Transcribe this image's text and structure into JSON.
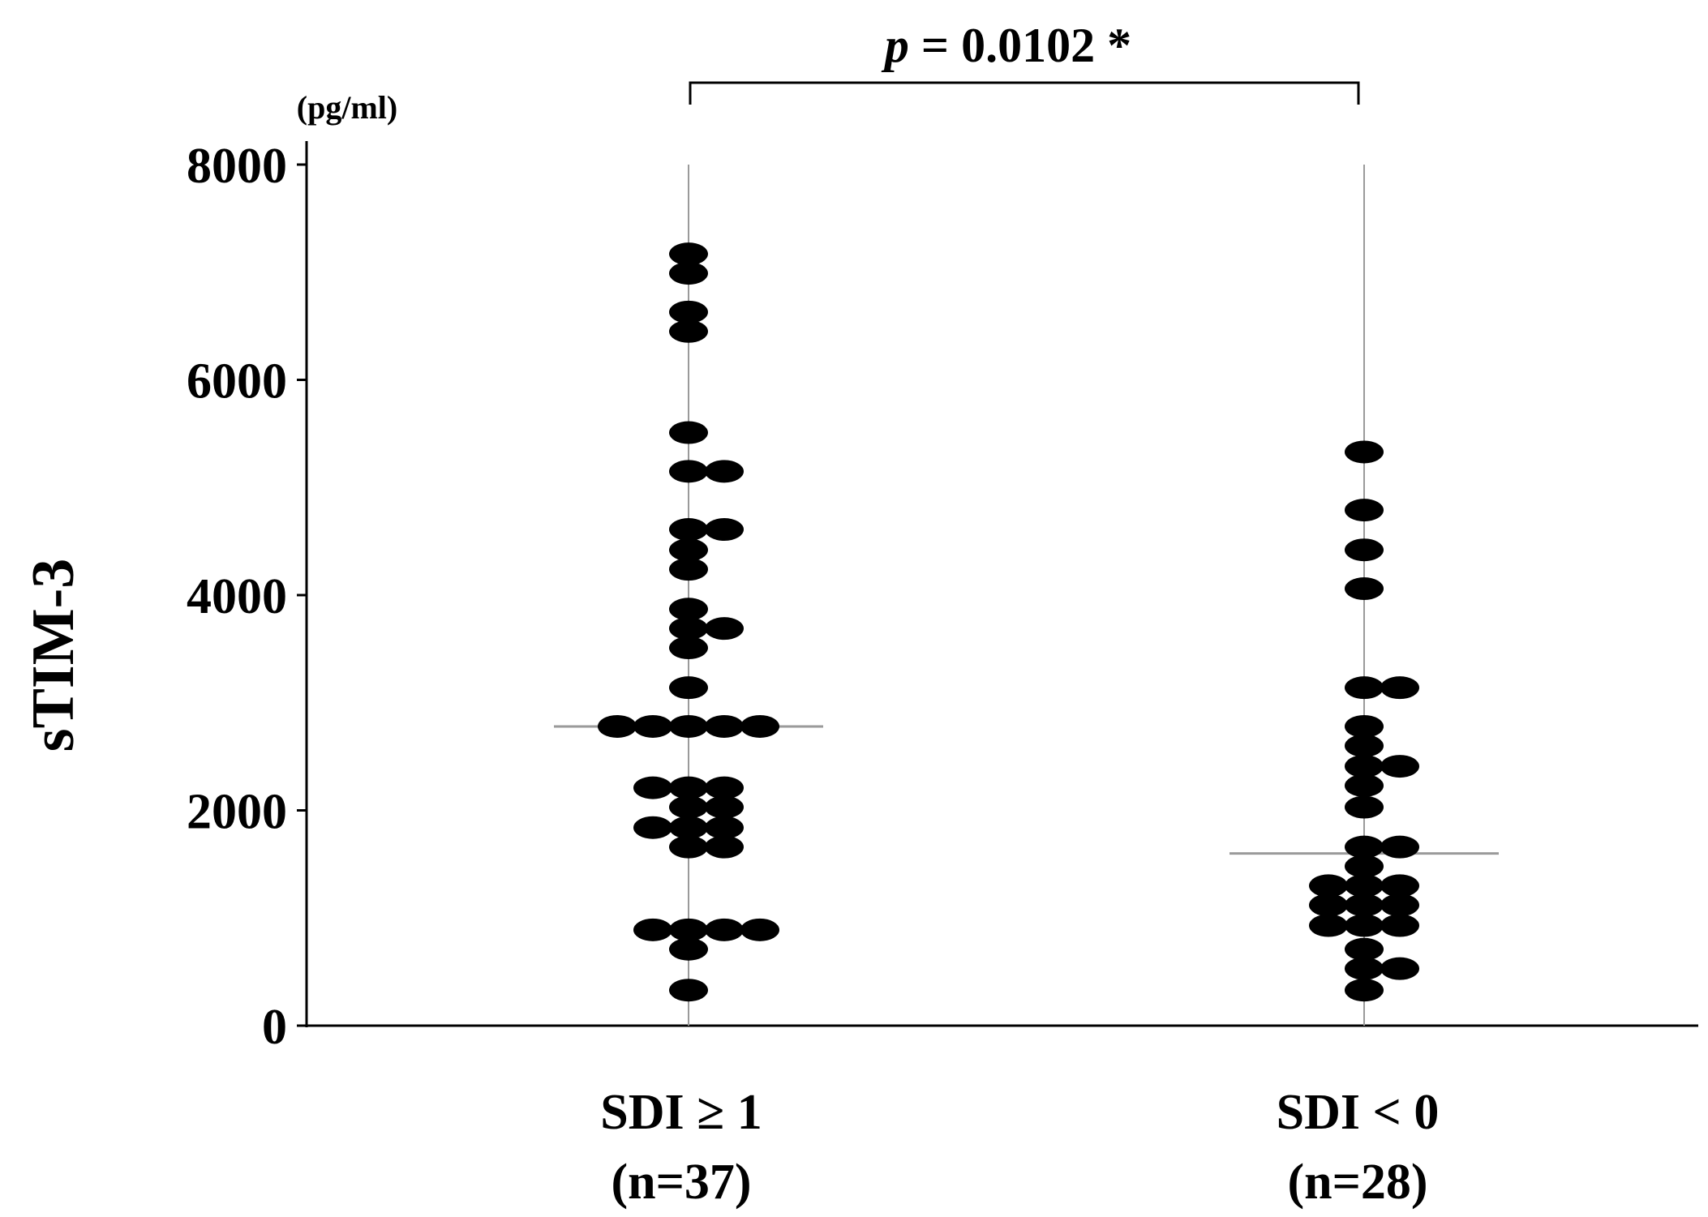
{
  "chart_data": {
    "type": "scatter",
    "subtype": "dot-plot",
    "ylabel": "sTIM-3",
    "yunit": "(pg/ml)",
    "ylim": [
      0,
      8000
    ],
    "yticks": [
      "0",
      "2000",
      "4000",
      "6000",
      "8000"
    ],
    "grid": false,
    "significance": {
      "italic": "p",
      "text": " = 0.0102 *"
    },
    "groups": [
      {
        "label": "SDI ≥ 1",
        "n_label": "(n=37)",
        "median": 2780,
        "points": [
          [
            0,
            7170
          ],
          [
            0,
            6990
          ],
          [
            0,
            6630
          ],
          [
            0,
            6450
          ],
          [
            0,
            5510
          ],
          [
            0,
            5150
          ],
          [
            1,
            5150
          ],
          [
            0,
            4610
          ],
          [
            1,
            4610
          ],
          [
            0,
            4420
          ],
          [
            0,
            4240
          ],
          [
            0,
            3870
          ],
          [
            0,
            3690
          ],
          [
            1,
            3690
          ],
          [
            0,
            3510
          ],
          [
            0,
            3140
          ],
          [
            -2,
            2780
          ],
          [
            -1,
            2780
          ],
          [
            0,
            2780
          ],
          [
            1,
            2780
          ],
          [
            2,
            2780
          ],
          [
            -1,
            2210
          ],
          [
            0,
            2210
          ],
          [
            1,
            2210
          ],
          [
            0,
            2030
          ],
          [
            1,
            2030
          ],
          [
            -1,
            1840
          ],
          [
            0,
            1840
          ],
          [
            1,
            1840
          ],
          [
            0,
            1660
          ],
          [
            1,
            1660
          ],
          [
            -1,
            890
          ],
          [
            0,
            890
          ],
          [
            1,
            890
          ],
          [
            2,
            890
          ],
          [
            0,
            710
          ],
          [
            0,
            330
          ]
        ]
      },
      {
        "label": "SDI < 0",
        "n_label": "(n=28)",
        "median": 1600,
        "points": [
          [
            0,
            5330
          ],
          [
            0,
            4790
          ],
          [
            0,
            4420
          ],
          [
            0,
            4060
          ],
          [
            0,
            3140
          ],
          [
            1,
            3140
          ],
          [
            0,
            2780
          ],
          [
            0,
            2600
          ],
          [
            0,
            2410
          ],
          [
            1,
            2410
          ],
          [
            0,
            2230
          ],
          [
            0,
            2030
          ],
          [
            0,
            1660
          ],
          [
            1,
            1660
          ],
          [
            0,
            1480
          ],
          [
            -1,
            1300
          ],
          [
            0,
            1300
          ],
          [
            1,
            1300
          ],
          [
            -1,
            1120
          ],
          [
            0,
            1120
          ],
          [
            1,
            1120
          ],
          [
            -1,
            930
          ],
          [
            0,
            930
          ],
          [
            1,
            930
          ],
          [
            0,
            710
          ],
          [
            0,
            530
          ],
          [
            1,
            530
          ],
          [
            0,
            330
          ]
        ]
      }
    ]
  }
}
